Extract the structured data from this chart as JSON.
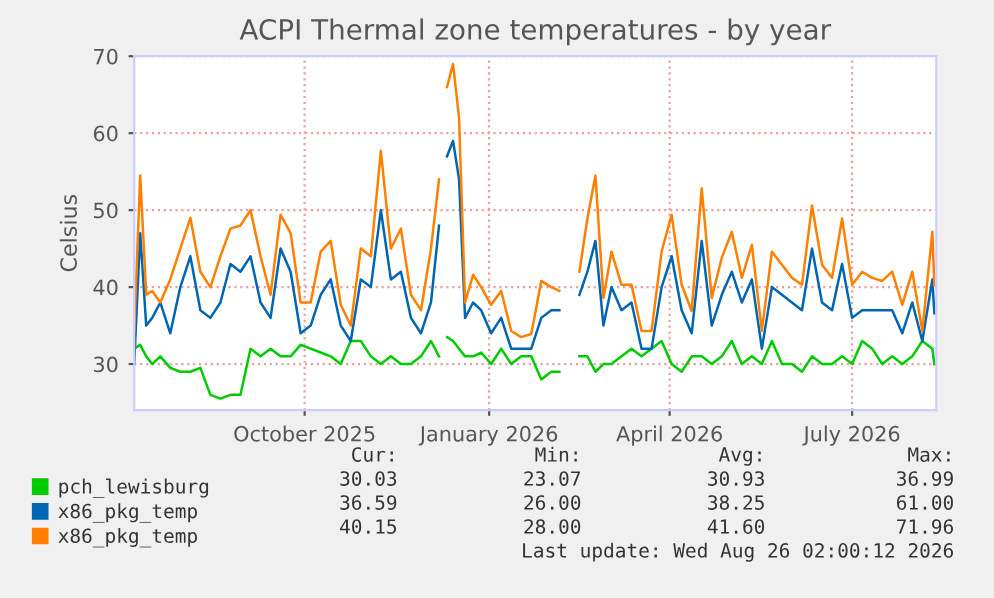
{
  "chart_data": {
    "type": "line",
    "title": "ACPI Thermal zone temperatures - by year",
    "ylabel": "Celsius",
    "x": [
      "2025-07-22",
      "2025-07-25",
      "2025-07-28",
      "2025-07-31",
      "2025-08-04",
      "2025-08-09",
      "2025-08-14",
      "2025-08-19",
      "2025-08-24",
      "2025-08-29",
      "2025-09-03",
      "2025-09-08",
      "2025-09-13",
      "2025-09-18",
      "2025-09-23",
      "2025-09-28",
      "2025-10-03",
      "2025-10-08",
      "2025-10-13",
      "2025-10-18",
      "2025-10-23",
      "2025-10-28",
      "2025-11-02",
      "2025-11-07",
      "2025-11-12",
      "2025-11-17",
      "2025-11-22",
      "2025-11-27",
      "2025-12-02",
      "2025-12-07",
      "2025-12-12",
      "2025-12-17",
      "2025-12-21",
      "2025-12-23",
      "2025-12-25",
      "2025-12-28",
      "2025-12-31",
      "2026-01-03",
      "2026-01-07",
      "2026-01-11",
      "2026-01-16",
      "2026-01-21",
      "2026-01-26",
      "2026-01-31",
      "2026-02-05",
      "2026-02-10",
      "2026-02-15",
      "2026-02-19",
      "2026-02-24",
      "2026-03-01",
      "2026-03-05",
      "2026-03-09",
      "2026-03-13",
      "2026-03-17",
      "2026-03-22",
      "2026-03-27",
      "2026-04-01",
      "2026-04-06",
      "2026-04-11",
      "2026-04-16",
      "2026-04-21",
      "2026-04-26",
      "2026-05-01",
      "2026-05-06",
      "2026-05-11",
      "2026-05-16",
      "2026-05-21",
      "2026-05-26",
      "2026-05-31",
      "2026-06-05",
      "2026-06-10",
      "2026-06-15",
      "2026-06-20",
      "2026-06-25",
      "2026-06-30",
      "2026-07-05",
      "2026-07-10",
      "2026-07-15",
      "2026-07-20",
      "2026-07-25",
      "2026-07-30",
      "2026-08-04",
      "2026-08-09",
      "2026-08-14",
      "2026-08-19",
      "2026-08-24",
      "2026-08-25"
    ],
    "series": [
      {
        "name": "pch_lewisburg",
        "color": "#00cc00",
        "values": [
          32,
          32.5,
          31,
          30,
          31,
          29.5,
          29,
          29,
          29.5,
          26,
          25.5,
          26,
          26,
          32,
          31,
          32,
          31,
          31,
          32.5,
          32,
          31.5,
          31,
          30,
          33,
          33,
          31,
          30,
          31,
          30,
          30,
          31,
          33,
          31,
          null,
          33.5,
          33,
          32,
          31,
          31,
          31.5,
          30,
          32,
          30,
          31,
          31,
          28,
          29,
          29,
          null,
          31,
          31,
          29,
          30,
          30,
          31,
          32,
          31,
          32,
          33,
          30,
          29,
          31,
          31,
          30,
          31,
          33,
          30,
          31,
          30,
          33,
          30,
          30,
          29,
          31,
          30,
          30,
          31,
          30,
          33,
          32,
          30,
          31,
          30,
          31,
          33,
          32,
          30.0
        ]
      },
      {
        "name": "x86_pkg_temp",
        "color": "#0066b3",
        "values": [
          30,
          47,
          35,
          36,
          38,
          34,
          40,
          44,
          37,
          36,
          38,
          43,
          42,
          44,
          38,
          36,
          45,
          42,
          34,
          35,
          39,
          41,
          35,
          33,
          41,
          40,
          50,
          41,
          42,
          36,
          34,
          38,
          48,
          null,
          57,
          59,
          54,
          36,
          38,
          37,
          34,
          36,
          32,
          32,
          32,
          36,
          37,
          37,
          null,
          39,
          42,
          46,
          35,
          40,
          37,
          38,
          32,
          32,
          40,
          44,
          37,
          34,
          46,
          35,
          39,
          42,
          38,
          41,
          32,
          40,
          39,
          38,
          37,
          45,
          38,
          37,
          43,
          36,
          37,
          37,
          37,
          37,
          34,
          38,
          33,
          41,
          36.6
        ]
      },
      {
        "name": "x86_pkg_temp",
        "color": "#ff8000",
        "values": [
          34.3,
          54.5,
          39,
          39.5,
          38,
          41,
          45,
          49,
          42,
          40,
          44,
          47.6,
          48,
          50,
          44,
          39,
          49.4,
          47,
          38,
          38,
          44.6,
          46,
          37.7,
          35,
          45,
          44,
          57.7,
          45,
          47.6,
          39,
          37,
          45,
          54,
          null,
          66,
          69,
          62,
          38,
          41.6,
          40,
          37.7,
          39.5,
          34.3,
          33.5,
          33.9,
          40.8,
          40,
          39.5,
          null,
          42,
          48.9,
          54.5,
          38.6,
          44.6,
          40.3,
          40.3,
          34.3,
          34.3,
          44.6,
          49.4,
          40.3,
          36.9,
          52.8,
          38.6,
          43.8,
          47.2,
          41.2,
          45.5,
          34.3,
          44.6,
          42.9,
          41.2,
          40.3,
          50.6,
          42.9,
          41.2,
          48.9,
          40.3,
          42,
          41.2,
          40.8,
          42,
          37.7,
          42,
          34.3,
          47.2,
          40.2
        ]
      }
    ],
    "xlim": [
      "2025-07-22",
      "2026-08-26"
    ],
    "xticks": [
      {
        "value": "2025-10-15",
        "label": "October 2025"
      },
      {
        "value": "2026-01-15",
        "label": "January 2026"
      },
      {
        "value": "2026-04-15",
        "label": "April 2026"
      },
      {
        "value": "2026-07-15",
        "label": "July 2026"
      }
    ],
    "ylim": [
      24,
      70
    ],
    "yticks": [
      30,
      40,
      50,
      60,
      70
    ],
    "grid": true,
    "legend": "bottom left",
    "marker": "none",
    "line_style": "solid",
    "annotations": [
      "Cur:",
      "Min:",
      "Avg:",
      "Max:",
      "30.03",
      "23.07",
      "30.93",
      "36.99",
      "36.59",
      "26.00",
      "38.25",
      "61.00",
      "40.15",
      "28.00",
      "41.60",
      "71.96",
      "Last update: Wed Aug 26 02:00:12 2026"
    ]
  }
}
